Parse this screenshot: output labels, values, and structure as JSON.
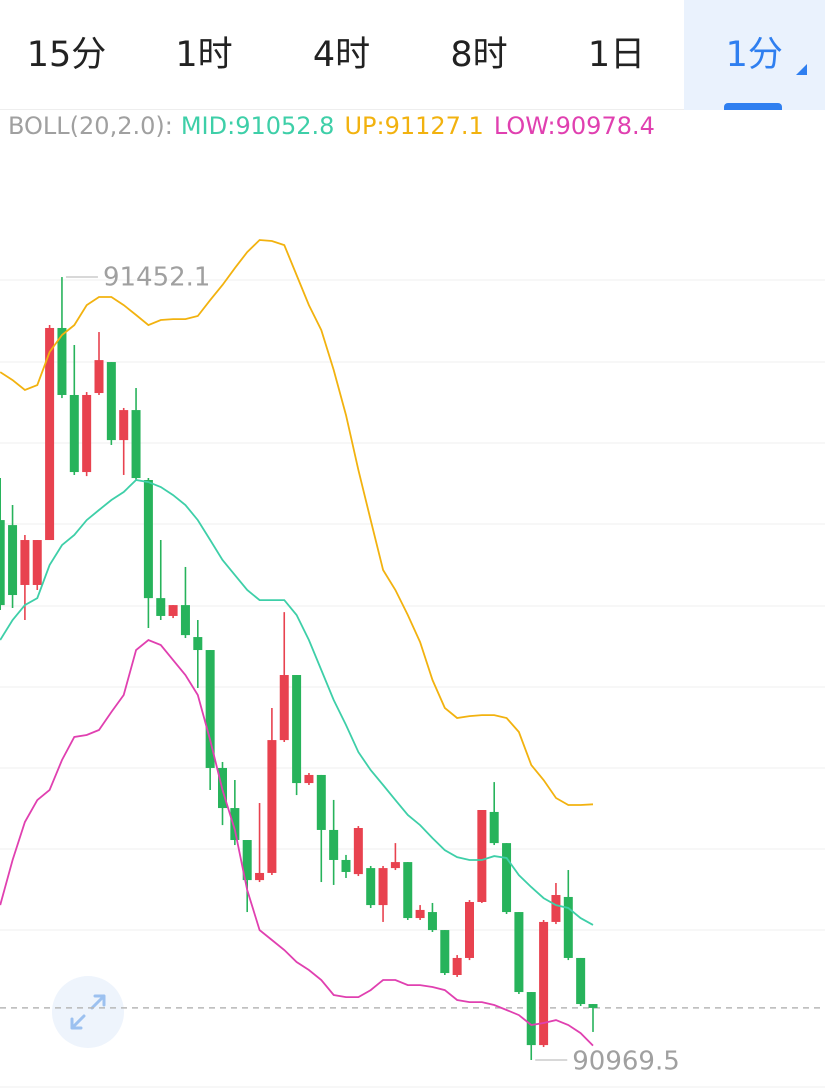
{
  "tabs": {
    "labels": [
      "15分",
      "1时",
      "4时",
      "8时",
      "1日",
      "1分"
    ],
    "active": 5
  },
  "chart_data": {
    "type": "candlestick",
    "indicator": "BOLL(20,2.0):",
    "up_color": "#e8424f",
    "down_color": "#27b35b",
    "ylim": [
      90954.1,
      91530.4
    ],
    "open": [
      91302.3,
      91299.2,
      91262.3,
      91262.3,
      91290.0,
      91420.7,
      91379.4,
      91331.9,
      91380.6,
      91399.7,
      91351.6,
      91370.1,
      91327.0,
      91254.2,
      91243.2,
      91249.9,
      91230.2,
      91222.2,
      91149.5,
      91124.8,
      91105.1,
      91080.4,
      91084.8,
      91166.7,
      91206.8,
      91140.2,
      91145.2,
      91111.3,
      91092.8,
      91084.1,
      91087.8,
      91065.0,
      91087.8,
      91091.5,
      91057.0,
      91060.7,
      91049.6,
      91021.9,
      91032.4,
      91066.9,
      91122.4,
      91103.2,
      91060.7,
      91011.4,
      90978.7,
      91054.6,
      91070.0,
      91032.4,
      91004.0
    ],
    "high": [
      91328.2,
      91311.6,
      91293.1,
      91290.0,
      91422.5,
      91452.1,
      91410.2,
      91381.2,
      91418.2,
      91399.7,
      91371.4,
      91383.7,
      91328.2,
      91290.0,
      91249.9,
      91273.4,
      91240.7,
      91222.2,
      91153.2,
      91142.1,
      91105.1,
      91127.9,
      91186.5,
      91245.6,
      91206.8,
      91146.4,
      91145.2,
      91129.8,
      91095.9,
      91113.7,
      91089.1,
      91089.1,
      91103.2,
      91091.5,
      91065.0,
      91066.3,
      91049.6,
      91034.2,
      91068.1,
      91123.6,
      91140.8,
      91103.2,
      91060.7,
      91011.4,
      91055.8,
      91078.6,
      91086.6,
      91032.4,
      91004.0
    ],
    "low": [
      91246.9,
      91248.1,
      91240.7,
      91259.2,
      91290.0,
      91377.5,
      91330.1,
      91329.4,
      91379.4,
      91348.6,
      91330.1,
      91327.0,
      91235.8,
      91240.7,
      91241.9,
      91229.6,
      91198.8,
      91135.9,
      91114.3,
      91102.0,
      91060.7,
      91079.2,
      91083.5,
      91165.5,
      91132.8,
      91139.0,
      91079.2,
      91077.4,
      91081.7,
      91082.9,
      91063.2,
      91054.6,
      91086.6,
      91055.8,
      91055.8,
      91048.4,
      91021.9,
      91020.7,
      91031.1,
      91066.3,
      91102.0,
      91059.5,
      91010.2,
      90969.5,
      90977.5,
      91053.3,
      91031.1,
      91002.8,
      90986.8
    ],
    "close": [
      91249.9,
      91256.1,
      91290.0,
      91290.0,
      91420.7,
      91379.4,
      91331.9,
      91379.4,
      91400.9,
      91351.6,
      91370.1,
      91328.2,
      91254.2,
      91243.2,
      91249.9,
      91231.4,
      91222.2,
      91149.5,
      91124.8,
      91105.1,
      91080.4,
      91084.8,
      91166.7,
      91206.8,
      91140.2,
      91145.2,
      91111.3,
      91092.8,
      91085.4,
      91112.5,
      91065.0,
      91087.8,
      91091.5,
      91057.0,
      91062.0,
      91049.6,
      91023.1,
      91032.4,
      91066.9,
      91123.6,
      91103.2,
      91060.7,
      91011.4,
      90978.7,
      91054.6,
      91071.2,
      91032.4,
      91004.0,
      91001.6
    ],
    "series": [
      {
        "name": "MID:",
        "color": "#3ecfa8",
        "values": [
          91228.4,
          91240.7,
          91249.9,
          91254.2,
          91274.6,
          91286.9,
          91293.1,
          91302.3,
          91308.5,
          91314.7,
          91319.6,
          91327.0,
          91325.7,
          91322.7,
          91317.7,
          91311.6,
          91302.3,
          91290.0,
          91277.7,
          91268.4,
          91259.2,
          91253.0,
          91253.0,
          91253.0,
          91243.8,
          91228.4,
          91209.9,
          91191.4,
          91176.0,
          91159.3,
          91148.2,
          91139.0,
          91129.7,
          91120.5,
          91114.3,
          91106.3,
          91098.9,
          91094.6,
          91092.8,
          91092.8,
          91095.2,
          91094.0,
          91083.5,
          91076.1,
          91069.3,
          91065.0,
          91063.2,
          91057.0,
          91052.8
        ]
      },
      {
        "name": "UP:",
        "color": "#f2b20f",
        "values": [
          91393.5,
          91388.6,
          91382.5,
          91385.5,
          91405.9,
          91416.4,
          91422.5,
          91434.8,
          91439.8,
          91439.8,
          91434.8,
          91428.7,
          91422.5,
          91425.6,
          91426.2,
          91426.2,
          91428.1,
          91437.9,
          91447.2,
          91457.6,
          91467.5,
          91474.9,
          91474.3,
          91471.8,
          91453.3,
          91434.8,
          91419.4,
          91394.8,
          91367.0,
          91333.1,
          91302.3,
          91271.5,
          91259.2,
          91243.8,
          91227.1,
          91203.7,
          91186.5,
          91180.3,
          91181.5,
          91182.1,
          91182.1,
          91180.3,
          91171.7,
          91151.3,
          91142.1,
          91131.0,
          91126.7,
          91126.7,
          91127.1
        ]
      },
      {
        "name": "LOW:",
        "color": "#e040b0",
        "values": [
          91065.0,
          91092.8,
          91116.2,
          91129.7,
          91135.9,
          91154.4,
          91168.6,
          91169.8,
          91172.9,
          91184.0,
          91194.5,
          91222.2,
          91228.4,
          91225.3,
          91216.0,
          91206.8,
          91194.5,
          91166.7,
          91135.9,
          91111.3,
          91074.3,
          91049.6,
          91043.5,
          91037.3,
          91029.9,
          91025.0,
          91018.8,
          91009.6,
          91008.3,
          91008.3,
          91012.6,
          91018.8,
          91018.8,
          91015.7,
          91015.7,
          91014.5,
          91012.6,
          91006.5,
          91005.2,
          91005.2,
          91003.4,
          91000.3,
          90997.2,
          90991.1,
          90992.3,
          90994.1,
          90991.1,
          90986.1,
          90978.4
        ]
      }
    ]
  }
}
